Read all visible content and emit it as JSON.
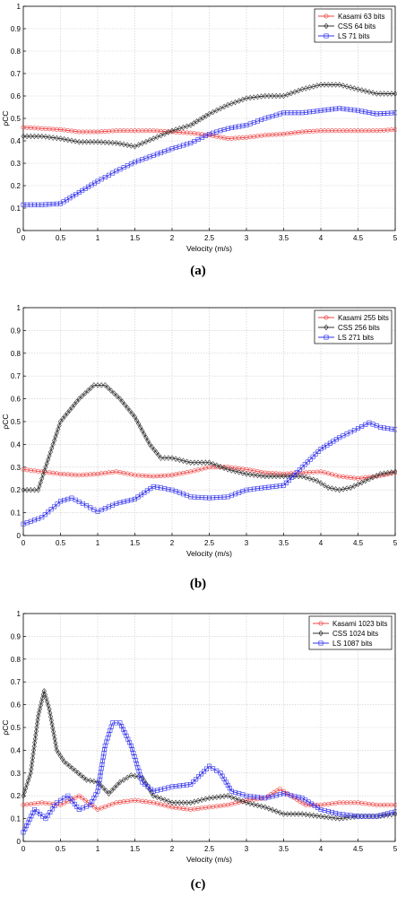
{
  "figure": {
    "panels": [
      {
        "caption": "(a)"
      },
      {
        "caption": "(b)"
      },
      {
        "caption": "(c)"
      }
    ]
  },
  "chart_data": [
    {
      "type": "line",
      "xlabel": "Velocity (m/s)",
      "ylabel": "ρCC",
      "xlim": [
        0,
        5
      ],
      "ylim": [
        0,
        1
      ],
      "xticks": [
        "0",
        "0.5",
        "1",
        "1.5",
        "2",
        "2.5",
        "3",
        "3.5",
        "4",
        "4.5",
        "5"
      ],
      "yticks": [
        "0",
        "0.1",
        "0.2",
        "0.3",
        "0.4",
        "0.5",
        "0.6",
        "0.7",
        "0.8",
        "0.9",
        "1"
      ],
      "grid": true,
      "legend_position": "top-right",
      "series": [
        {
          "name": "Kasami 63 bits",
          "color": "#ee4444",
          "marker": "circle",
          "x": [
            0,
            0.25,
            0.5,
            0.75,
            1.0,
            1.25,
            1.5,
            1.75,
            2.0,
            2.25,
            2.5,
            2.75,
            3.0,
            3.25,
            3.5,
            3.75,
            4.0,
            4.25,
            4.5,
            4.75,
            5.0
          ],
          "y": [
            0.46,
            0.455,
            0.45,
            0.44,
            0.44,
            0.445,
            0.445,
            0.445,
            0.44,
            0.435,
            0.425,
            0.41,
            0.415,
            0.425,
            0.43,
            0.44,
            0.445,
            0.445,
            0.445,
            0.445,
            0.45
          ]
        },
        {
          "name": "CSS 64 bits",
          "color": "#333333",
          "marker": "diamond",
          "x": [
            0,
            0.25,
            0.5,
            0.75,
            1.0,
            1.25,
            1.5,
            1.75,
            2.0,
            2.25,
            2.5,
            2.75,
            3.0,
            3.25,
            3.5,
            3.75,
            4.0,
            4.25,
            4.5,
            4.75,
            5.0
          ],
          "y": [
            0.42,
            0.42,
            0.41,
            0.395,
            0.395,
            0.39,
            0.375,
            0.41,
            0.445,
            0.47,
            0.52,
            0.56,
            0.59,
            0.6,
            0.6,
            0.63,
            0.65,
            0.65,
            0.63,
            0.61,
            0.61
          ]
        },
        {
          "name": "LS 71 bits",
          "color": "#3333ee",
          "marker": "square",
          "x": [
            0,
            0.25,
            0.5,
            0.75,
            1.0,
            1.25,
            1.5,
            1.75,
            2.0,
            2.25,
            2.5,
            2.75,
            3.0,
            3.25,
            3.5,
            3.75,
            4.0,
            4.25,
            4.5,
            4.75,
            5.0
          ],
          "y": [
            0.115,
            0.115,
            0.12,
            0.17,
            0.22,
            0.265,
            0.305,
            0.335,
            0.365,
            0.39,
            0.43,
            0.455,
            0.47,
            0.5,
            0.525,
            0.525,
            0.535,
            0.545,
            0.535,
            0.52,
            0.525
          ]
        }
      ]
    },
    {
      "type": "line",
      "xlabel": "Velocity (m/s)",
      "ylabel": "ρCC",
      "xlim": [
        0,
        5
      ],
      "ylim": [
        0,
        1
      ],
      "xticks": [
        "0",
        "0.5",
        "1",
        "1.5",
        "2",
        "2.5",
        "3",
        "3.5",
        "4",
        "4.5",
        "5"
      ],
      "yticks": [
        "0",
        "0.1",
        "0.2",
        "0.3",
        "0.4",
        "0.5",
        "0.6",
        "0.7",
        "0.8",
        "0.9",
        "1"
      ],
      "grid": true,
      "legend_position": "top-right",
      "series": [
        {
          "name": "Kasami 255 bits",
          "color": "#ee4444",
          "marker": "circle",
          "x": [
            0,
            0.25,
            0.5,
            0.75,
            1.0,
            1.25,
            1.5,
            1.75,
            2.0,
            2.25,
            2.5,
            2.75,
            3.0,
            3.25,
            3.5,
            3.75,
            4.0,
            4.25,
            4.5,
            4.75,
            5.0
          ],
          "y": [
            0.29,
            0.28,
            0.27,
            0.265,
            0.27,
            0.28,
            0.265,
            0.26,
            0.265,
            0.28,
            0.3,
            0.3,
            0.29,
            0.275,
            0.27,
            0.275,
            0.28,
            0.26,
            0.25,
            0.26,
            0.275
          ]
        },
        {
          "name": "CSS 256 bits",
          "color": "#333333",
          "marker": "diamond",
          "x": [
            0,
            0.2,
            0.35,
            0.5,
            0.75,
            0.95,
            1.1,
            1.3,
            1.5,
            1.7,
            1.85,
            2.0,
            2.25,
            2.5,
            2.75,
            3.0,
            3.25,
            3.5,
            3.75,
            3.95,
            4.1,
            4.25,
            4.4,
            4.6,
            4.8,
            5.0
          ],
          "y": [
            0.2,
            0.2,
            0.35,
            0.5,
            0.6,
            0.66,
            0.66,
            0.6,
            0.52,
            0.4,
            0.34,
            0.34,
            0.32,
            0.32,
            0.29,
            0.27,
            0.26,
            0.26,
            0.26,
            0.24,
            0.21,
            0.2,
            0.21,
            0.24,
            0.27,
            0.28
          ]
        },
        {
          "name": "LS 271 bits",
          "color": "#3333ee",
          "marker": "square",
          "x": [
            0,
            0.25,
            0.5,
            0.65,
            0.8,
            1.0,
            1.25,
            1.5,
            1.75,
            2.0,
            2.25,
            2.5,
            2.75,
            3.0,
            3.25,
            3.5,
            3.75,
            4.0,
            4.25,
            4.5,
            4.65,
            4.8,
            5.0
          ],
          "y": [
            0.05,
            0.08,
            0.15,
            0.165,
            0.14,
            0.105,
            0.14,
            0.16,
            0.215,
            0.2,
            0.17,
            0.165,
            0.17,
            0.2,
            0.21,
            0.22,
            0.3,
            0.38,
            0.43,
            0.47,
            0.495,
            0.475,
            0.465
          ]
        }
      ]
    },
    {
      "type": "line",
      "xlabel": "Velocity (m/s)",
      "ylabel": "ρCC",
      "xlim": [
        0,
        5
      ],
      "ylim": [
        0,
        1
      ],
      "xticks": [
        "0",
        "0.5",
        "1",
        "1.5",
        "2",
        "2.5",
        "3",
        "3.5",
        "4",
        "4.5",
        "5"
      ],
      "yticks": [
        "0",
        "0.1",
        "0.2",
        "0.3",
        "0.4",
        "0.5",
        "0.6",
        "0.7",
        "0.8",
        "0.9",
        "1"
      ],
      "grid": true,
      "legend_position": "top-right",
      "series": [
        {
          "name": "Kasami 1023 bits",
          "color": "#ee4444",
          "marker": "circle",
          "x": [
            0,
            0.25,
            0.5,
            0.75,
            1.0,
            1.25,
            1.5,
            1.75,
            2.0,
            2.25,
            2.5,
            2.75,
            3.0,
            3.25,
            3.45,
            3.6,
            3.8,
            4.0,
            4.25,
            4.5,
            4.75,
            5.0
          ],
          "y": [
            0.16,
            0.17,
            0.16,
            0.2,
            0.14,
            0.17,
            0.18,
            0.17,
            0.15,
            0.14,
            0.15,
            0.16,
            0.18,
            0.19,
            0.23,
            0.2,
            0.16,
            0.16,
            0.17,
            0.17,
            0.16,
            0.16
          ]
        },
        {
          "name": "CSS 1024 bits",
          "color": "#333333",
          "marker": "diamond",
          "x": [
            0,
            0.1,
            0.2,
            0.28,
            0.35,
            0.45,
            0.55,
            0.7,
            0.85,
            1.0,
            1.15,
            1.3,
            1.45,
            1.6,
            1.75,
            2.0,
            2.25,
            2.5,
            2.75,
            3.0,
            3.25,
            3.5,
            3.75,
            4.0,
            4.25,
            4.5,
            4.75,
            5.0
          ],
          "y": [
            0.2,
            0.3,
            0.55,
            0.66,
            0.58,
            0.4,
            0.35,
            0.31,
            0.27,
            0.26,
            0.21,
            0.26,
            0.29,
            0.28,
            0.2,
            0.17,
            0.17,
            0.19,
            0.2,
            0.17,
            0.15,
            0.12,
            0.12,
            0.11,
            0.1,
            0.11,
            0.11,
            0.12
          ]
        },
        {
          "name": "LS 1087 bits",
          "color": "#3333ee",
          "marker": "square",
          "x": [
            0,
            0.15,
            0.3,
            0.45,
            0.6,
            0.75,
            0.9,
            1.0,
            1.1,
            1.2,
            1.3,
            1.45,
            1.6,
            1.75,
            2.0,
            2.25,
            2.5,
            2.65,
            2.8,
            3.0,
            3.25,
            3.5,
            3.75,
            4.0,
            4.25,
            4.5,
            4.75,
            5.0
          ],
          "y": [
            0.04,
            0.14,
            0.1,
            0.17,
            0.2,
            0.14,
            0.16,
            0.22,
            0.42,
            0.52,
            0.52,
            0.42,
            0.26,
            0.22,
            0.24,
            0.25,
            0.33,
            0.3,
            0.22,
            0.2,
            0.19,
            0.21,
            0.19,
            0.14,
            0.12,
            0.11,
            0.11,
            0.13
          ]
        }
      ]
    }
  ]
}
